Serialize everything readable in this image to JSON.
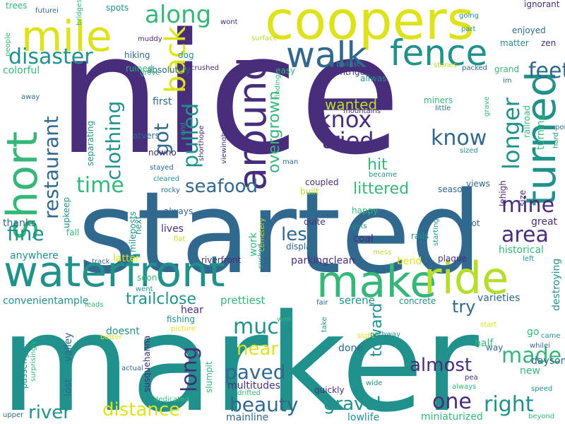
{
  "palette": {
    "purple": "#472d7b",
    "blue": "#31688e",
    "teal": "#21918c",
    "green": "#35b779",
    "lime": "#b5de2b",
    "yellow": "#dde318"
  },
  "words": [
    {
      "text": "nice",
      "color": "purple"
    },
    {
      "text": "marker",
      "color": "teal"
    },
    {
      "text": "started",
      "color": "blue"
    },
    {
      "text": "coopers",
      "color": "yellow"
    },
    {
      "text": "waterfront",
      "color": "teal"
    },
    {
      "text": "make",
      "color": "green"
    },
    {
      "text": "ride",
      "color": "lime"
    },
    {
      "text": "mile",
      "color": "yellow"
    },
    {
      "text": "short",
      "color": "green"
    },
    {
      "text": "walk",
      "color": "blue"
    },
    {
      "text": "fence",
      "color": "teal"
    },
    {
      "text": "around",
      "color": "purple"
    },
    {
      "text": "turned",
      "color": "teal"
    },
    {
      "text": "disaster",
      "color": "teal"
    },
    {
      "text": "along",
      "color": "green"
    },
    {
      "text": "back",
      "color": "yellow"
    },
    {
      "text": "restaurant",
      "color": "blue"
    },
    {
      "text": "knox",
      "color": "purple"
    },
    {
      "text": "tried",
      "color": "purple"
    },
    {
      "text": "know",
      "color": "blue"
    },
    {
      "text": "longer",
      "color": "teal"
    },
    {
      "text": "got",
      "color": "blue"
    },
    {
      "text": "pulled",
      "color": "teal"
    },
    {
      "text": "clothing",
      "color": "teal"
    },
    {
      "text": "overgrown",
      "color": "green"
    },
    {
      "text": "feet",
      "color": "blue"
    },
    {
      "text": "time",
      "color": "green"
    },
    {
      "text": "seafood",
      "color": "blue"
    },
    {
      "text": "fine",
      "color": "teal"
    },
    {
      "text": "mine",
      "color": "purple"
    },
    {
      "text": "area",
      "color": "purple"
    },
    {
      "text": "hit",
      "color": "green"
    },
    {
      "text": "wanted",
      "color": "lime"
    },
    {
      "text": "littered",
      "color": "green"
    },
    {
      "text": "less",
      "color": "blue"
    },
    {
      "text": "much",
      "color": "teal"
    },
    {
      "text": "near",
      "color": "yellow"
    },
    {
      "text": "long",
      "color": "purple"
    },
    {
      "text": "paved",
      "color": "blue"
    },
    {
      "text": "trailclose",
      "color": "teal"
    },
    {
      "text": "try",
      "color": "blue"
    },
    {
      "text": "toward",
      "color": "teal"
    },
    {
      "text": "made",
      "color": "green"
    },
    {
      "text": "almost",
      "color": "purple"
    },
    {
      "text": "beauty",
      "color": "blue"
    },
    {
      "text": "gravel",
      "color": "teal"
    },
    {
      "text": "one",
      "color": "purple"
    },
    {
      "text": "right",
      "color": "teal"
    },
    {
      "text": "river",
      "color": "teal"
    },
    {
      "text": "distance",
      "color": "yellow"
    },
    {
      "text": "prettiest",
      "color": "green"
    },
    {
      "text": "serene",
      "color": "teal"
    },
    {
      "text": "absolutely",
      "color": "blue"
    },
    {
      "text": "hiking",
      "color": "blue"
    },
    {
      "text": "dog",
      "color": "teal"
    },
    {
      "text": "ruined",
      "color": "green"
    },
    {
      "text": "spots",
      "color": "teal"
    },
    {
      "text": "trees",
      "color": "green"
    },
    {
      "text": "futurei",
      "color": "blue"
    },
    {
      "text": "bridges",
      "color": "green"
    },
    {
      "text": "wont",
      "color": "purple"
    },
    {
      "text": "muddy",
      "color": "purple"
    },
    {
      "text": "crushed",
      "color": "purple"
    },
    {
      "text": "surface",
      "color": "lime"
    },
    {
      "text": "grove",
      "color": "green"
    },
    {
      "text": "colorful",
      "color": "green"
    },
    {
      "text": "first",
      "color": "blue"
    },
    {
      "text": "nowno",
      "color": "purple"
    },
    {
      "text": "atvers",
      "color": "blue"
    },
    {
      "text": "separating",
      "color": "teal"
    },
    {
      "text": "stayed",
      "color": "blue"
    },
    {
      "text": "cleared",
      "color": "teal"
    },
    {
      "text": "rocky",
      "color": "blue"
    },
    {
      "text": "viewingbeautiful",
      "color": "purple"
    },
    {
      "text": "shorthope",
      "color": "purple"
    },
    {
      "text": "end",
      "color": "teal"
    },
    {
      "text": "ballast",
      "color": "teal"
    },
    {
      "text": "intrigue",
      "color": "purple"
    },
    {
      "text": "allwas",
      "color": "teal"
    },
    {
      "text": "easy",
      "color": "green"
    },
    {
      "text": "finding",
      "color": "green"
    },
    {
      "text": "grand",
      "color": "green"
    },
    {
      "text": "im",
      "color": "blue"
    },
    {
      "text": "railroad",
      "color": "green"
    },
    {
      "text": "miners",
      "color": "green"
    },
    {
      "text": "little",
      "color": "blue"
    },
    {
      "text": "mountains",
      "color": "purple"
    },
    {
      "text": "grave",
      "color": "green"
    },
    {
      "text": "turning",
      "color": "green"
    },
    {
      "text": "size",
      "color": "purple"
    },
    {
      "text": "point",
      "color": "blue"
    },
    {
      "text": "hard",
      "color": "teal"
    },
    {
      "text": "sized",
      "color": "teal"
    },
    {
      "text": "became",
      "color": "teal"
    },
    {
      "text": "man",
      "color": "blue"
    },
    {
      "text": "coupled",
      "color": "purple"
    },
    {
      "text": "views",
      "color": "blue"
    },
    {
      "text": "seasons",
      "color": "blue"
    },
    {
      "text": "lehigh",
      "color": "purple"
    },
    {
      "text": "great",
      "color": "purple"
    },
    {
      "text": "built",
      "color": "lime"
    },
    {
      "text": "quite",
      "color": "purple"
    },
    {
      "text": "happy",
      "color": "green"
    },
    {
      "text": "gets",
      "color": "teal"
    },
    {
      "text": "foot",
      "color": "blue"
    },
    {
      "text": "starting",
      "color": "teal"
    },
    {
      "text": "rails",
      "color": "teal"
    },
    {
      "text": "coal",
      "color": "purple"
    },
    {
      "text": "display",
      "color": "blue"
    },
    {
      "text": "historical",
      "color": "green"
    },
    {
      "text": "mess",
      "color": "lime"
    },
    {
      "text": "plaque",
      "color": "purple"
    },
    {
      "text": "left",
      "color": "teal"
    },
    {
      "text": "bend",
      "color": "yellow"
    },
    {
      "text": "parkingclean",
      "color": "purple"
    },
    {
      "text": "lives",
      "color": "purple"
    },
    {
      "text": "always",
      "color": "blue"
    },
    {
      "text": "next",
      "color": "teal"
    },
    {
      "text": "mileposts",
      "color": "teal"
    },
    {
      "text": "flat",
      "color": "lime"
    },
    {
      "text": "cemetery",
      "color": "lime"
    },
    {
      "text": "work",
      "color": "green"
    },
    {
      "text": "sucked",
      "color": "teal"
    },
    {
      "text": "upkeep",
      "color": "teal"
    },
    {
      "text": "thanks",
      "color": "blue"
    },
    {
      "text": "fall",
      "color": "green"
    },
    {
      "text": "anywhere",
      "color": "teal"
    },
    {
      "text": "latter",
      "color": "yellow"
    },
    {
      "text": "track",
      "color": "blue"
    },
    {
      "text": "riverfront",
      "color": "purple"
    },
    {
      "text": "soon",
      "color": "green"
    },
    {
      "text": "went",
      "color": "teal"
    },
    {
      "text": "convenientample",
      "color": "teal"
    },
    {
      "text": "leads",
      "color": "green"
    },
    {
      "text": "hear",
      "color": "purple"
    },
    {
      "text": "fishing",
      "color": "teal"
    },
    {
      "text": "picture",
      "color": "yellow"
    },
    {
      "text": "well",
      "color": "green"
    },
    {
      "text": "fair",
      "color": "blue"
    },
    {
      "text": "concrete",
      "color": "teal"
    },
    {
      "text": "varieties",
      "color": "blue"
    },
    {
      "text": "destroying",
      "color": "teal"
    },
    {
      "text": "go",
      "color": "green"
    },
    {
      "text": "came",
      "color": "teal"
    },
    {
      "text": "whilei",
      "color": "blue"
    },
    {
      "text": "doesnt",
      "color": "teal"
    },
    {
      "text": "half",
      "color": "green"
    },
    {
      "text": "way",
      "color": "blue"
    },
    {
      "text": "valley",
      "color": "blue"
    },
    {
      "text": "done",
      "color": "blue"
    },
    {
      "text": "take",
      "color": "teal"
    },
    {
      "text": "sight",
      "color": "yellow"
    },
    {
      "text": "pathway",
      "color": "teal"
    },
    {
      "text": "start",
      "color": "yellow"
    },
    {
      "text": "better",
      "color": "yellow"
    },
    {
      "text": "daysome",
      "color": "blue"
    },
    {
      "text": "new",
      "color": "green"
    },
    {
      "text": "speed",
      "color": "teal"
    },
    {
      "text": "pea",
      "color": "purple"
    },
    {
      "text": "always",
      "color": "green"
    },
    {
      "text": "actual",
      "color": "blue"
    },
    {
      "text": "susquehanna",
      "color": "purple"
    },
    {
      "text": "slumpit",
      "color": "green"
    },
    {
      "text": "multitudes",
      "color": "purple"
    },
    {
      "text": "drifted",
      "color": "green"
    },
    {
      "text": "dedicated",
      "color": "green"
    },
    {
      "text": "quickly",
      "color": "purple"
    },
    {
      "text": "wide",
      "color": "teal"
    },
    {
      "text": "passenger",
      "color": "teal"
    },
    {
      "text": "surprisingly",
      "color": "green"
    },
    {
      "text": "lost",
      "color": "blue"
    },
    {
      "text": "upper",
      "color": "blue"
    },
    {
      "text": "mainline",
      "color": "blue"
    },
    {
      "text": "lowlife",
      "color": "teal"
    },
    {
      "text": "miniaturized",
      "color": "green"
    },
    {
      "text": "beyond",
      "color": "green"
    },
    {
      "text": "ignorant",
      "color": "purple"
    },
    {
      "text": "going",
      "color": "teal"
    },
    {
      "text": "part",
      "color": "teal"
    },
    {
      "text": "enjoyed",
      "color": "blue"
    },
    {
      "text": "matter",
      "color": "teal"
    },
    {
      "text": "zen",
      "color": "purple"
    },
    {
      "text": "stones",
      "color": "lime"
    },
    {
      "text": "packed",
      "color": "blue"
    },
    {
      "text": "people",
      "color": "green"
    },
    {
      "text": "away",
      "color": "blue"
    }
  ]
}
